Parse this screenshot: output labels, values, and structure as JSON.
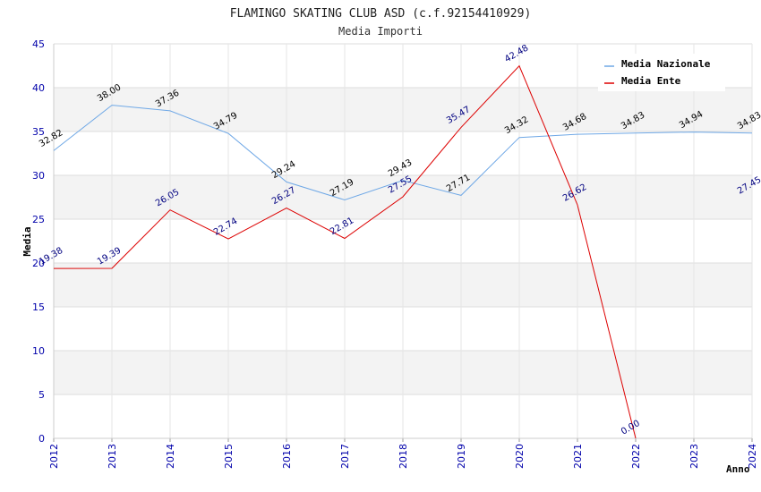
{
  "chart_data": {
    "type": "line",
    "title": "FLAMINGO SKATING CLUB ASD (c.f.92154410929)",
    "subtitle": "Media Importi",
    "xlabel": "Anno",
    "ylabel": "Media",
    "ylim": [
      0,
      45
    ],
    "yticks": [
      "0",
      "5",
      "10",
      "15",
      "20",
      "25",
      "30",
      "35",
      "40",
      "45"
    ],
    "categories": [
      "2012",
      "2013",
      "2014",
      "2015",
      "2016",
      "2017",
      "2018",
      "2019",
      "2020",
      "2021",
      "2022",
      "2023",
      "2024"
    ],
    "series": [
      {
        "name": "Media Nazionale",
        "color": "#6fa8e6",
        "values": [
          32.82,
          38.0,
          37.36,
          34.79,
          29.24,
          27.19,
          29.43,
          27.71,
          34.32,
          34.68,
          34.83,
          34.94,
          34.83
        ],
        "labels": [
          "32.82",
          "38.00",
          "37.36",
          "34.79",
          "29.24",
          "27.19",
          "29.43",
          "27.71",
          "34.32",
          "34.68",
          "34.83",
          "34.94",
          "34.83"
        ]
      },
      {
        "name": "Media Ente",
        "color": "#dd0000",
        "values": [
          19.38,
          19.39,
          26.05,
          22.74,
          26.27,
          22.81,
          27.55,
          35.47,
          42.48,
          26.62,
          0.0,
          null,
          27.45
        ],
        "labels": [
          "19.38",
          "19.39",
          "26.05",
          "22.74",
          "26.27",
          "22.81",
          "27.55",
          "35.47",
          "42.48",
          "26.62",
          "0.00",
          null,
          "27.45"
        ]
      }
    ],
    "legend": "top-right",
    "grid": true
  }
}
